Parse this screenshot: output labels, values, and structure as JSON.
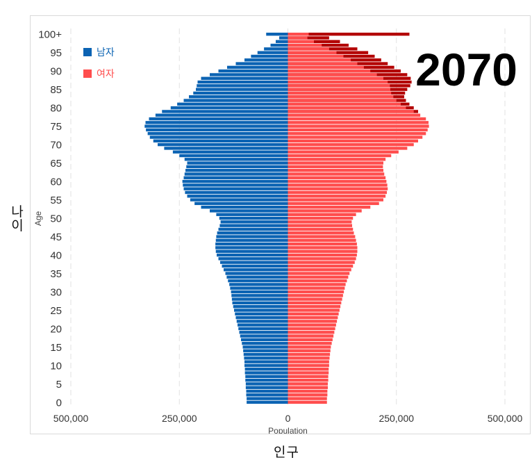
{
  "chart_data": {
    "type": "bar",
    "orientation": "horizontal-population-pyramid",
    "year_label": "2070",
    "xlabel": "Population",
    "ylabel": "Age",
    "outer_xlabel": "인구",
    "outer_ylabel": "나이",
    "xlim": [
      -500000,
      500000
    ],
    "x_ticks": [
      {
        "value": -500000,
        "label": "500,000"
      },
      {
        "value": -250000,
        "label": "250,000"
      },
      {
        "value": 0,
        "label": "0"
      },
      {
        "value": 250000,
        "label": "250,000"
      },
      {
        "value": 500000,
        "label": "500,000"
      }
    ],
    "y_ticks": [
      "0",
      "5",
      "10",
      "15",
      "20",
      "25",
      "30",
      "35",
      "40",
      "45",
      "50",
      "55",
      "60",
      "65",
      "70",
      "75",
      "80",
      "85",
      "90",
      "95",
      "100+"
    ],
    "age_categories": [
      "0",
      "1",
      "2",
      "3",
      "4",
      "5",
      "6",
      "7",
      "8",
      "9",
      "10",
      "11",
      "12",
      "13",
      "14",
      "15",
      "16",
      "17",
      "18",
      "19",
      "20",
      "21",
      "22",
      "23",
      "24",
      "25",
      "26",
      "27",
      "28",
      "29",
      "30",
      "31",
      "32",
      "33",
      "34",
      "35",
      "36",
      "37",
      "38",
      "39",
      "40",
      "41",
      "42",
      "43",
      "44",
      "45",
      "46",
      "47",
      "48",
      "49",
      "50",
      "51",
      "52",
      "53",
      "54",
      "55",
      "56",
      "57",
      "58",
      "59",
      "60",
      "61",
      "62",
      "63",
      "64",
      "65",
      "66",
      "67",
      "68",
      "69",
      "70",
      "71",
      "72",
      "73",
      "74",
      "75",
      "76",
      "77",
      "78",
      "79",
      "80",
      "81",
      "82",
      "83",
      "84",
      "85",
      "86",
      "87",
      "88",
      "89",
      "90",
      "91",
      "92",
      "93",
      "94",
      "95",
      "96",
      "97",
      "98",
      "99",
      "100+"
    ],
    "grid": "vertical dashed",
    "legend_position": "top-left",
    "series": [
      {
        "name": "남자",
        "color": "#0b63b3",
        "side": "left",
        "values": [
          95000,
          95000,
          96000,
          96000,
          97000,
          97000,
          98000,
          98000,
          99000,
          99000,
          100000,
          100000,
          101000,
          102000,
          103000,
          104000,
          106000,
          108000,
          110000,
          112000,
          114000,
          116000,
          118000,
          120000,
          122000,
          124000,
          126000,
          128000,
          129000,
          130000,
          131000,
          133000,
          135000,
          138000,
          141000,
          144000,
          148000,
          152000,
          156000,
          160000,
          164000,
          166000,
          167000,
          167000,
          166000,
          165000,
          163000,
          160000,
          157000,
          155000,
          158000,
          165000,
          180000,
          200000,
          215000,
          225000,
          232000,
          237000,
          240000,
          242000,
          243000,
          240000,
          238000,
          236000,
          234000,
          232000,
          238000,
          250000,
          265000,
          285000,
          300000,
          310000,
          318000,
          323000,
          327000,
          330000,
          328000,
          320000,
          305000,
          290000,
          270000,
          255000,
          240000,
          228000,
          218000,
          212000,
          210000,
          208000,
          200000,
          180000,
          160000,
          140000,
          120000,
          100000,
          85000,
          70000,
          55000,
          40000,
          28000,
          20000,
          50000
        ]
      },
      {
        "name": "여자",
        "color": "#ff4d4d",
        "side": "right",
        "values": [
          90000,
          90000,
          91000,
          91000,
          92000,
          92000,
          93000,
          93000,
          94000,
          94000,
          95000,
          95000,
          96000,
          97000,
          98000,
          99000,
          101000,
          103000,
          105000,
          107000,
          109000,
          111000,
          113000,
          115000,
          117000,
          119000,
          121000,
          123000,
          125000,
          127000,
          129000,
          131000,
          133000,
          136000,
          139000,
          142000,
          146000,
          150000,
          154000,
          157000,
          159000,
          160000,
          160000,
          159000,
          157000,
          155000,
          152000,
          150000,
          148000,
          147000,
          150000,
          157000,
          170000,
          190000,
          210000,
          220000,
          225000,
          228000,
          230000,
          229000,
          227000,
          225000,
          222000,
          220000,
          219000,
          220000,
          225000,
          238000,
          255000,
          275000,
          290000,
          300000,
          310000,
          318000,
          322000,
          325000,
          324000,
          318000,
          305000,
          290000,
          272000,
          260000,
          250000,
          243000,
          238000,
          236000,
          235000,
          230000,
          220000,
          205000,
          190000,
          175000,
          160000,
          145000,
          128000,
          112000,
          95000,
          78000,
          60000,
          45000,
          48000
        ]
      },
      {
        "name": "",
        "color": "#b30000",
        "side": "right-overlay",
        "values": [
          0,
          0,
          0,
          0,
          0,
          0,
          0,
          0,
          0,
          0,
          0,
          0,
          0,
          0,
          0,
          0,
          0,
          0,
          0,
          0,
          0,
          0,
          0,
          0,
          0,
          0,
          0,
          0,
          0,
          0,
          0,
          0,
          0,
          0,
          0,
          0,
          0,
          0,
          0,
          0,
          0,
          0,
          0,
          0,
          0,
          0,
          0,
          0,
          0,
          0,
          0,
          0,
          0,
          0,
          0,
          0,
          0,
          0,
          0,
          0,
          0,
          0,
          0,
          0,
          0,
          0,
          0,
          0,
          0,
          0,
          0,
          0,
          0,
          0,
          0,
          0,
          0,
          0,
          0,
          300000,
          290000,
          280000,
          272000,
          268000,
          270000,
          275000,
          282000,
          285000,
          283000,
          275000,
          260000,
          245000,
          230000,
          215000,
          200000,
          185000,
          160000,
          140000,
          120000,
          95000,
          280000
        ]
      }
    ]
  }
}
